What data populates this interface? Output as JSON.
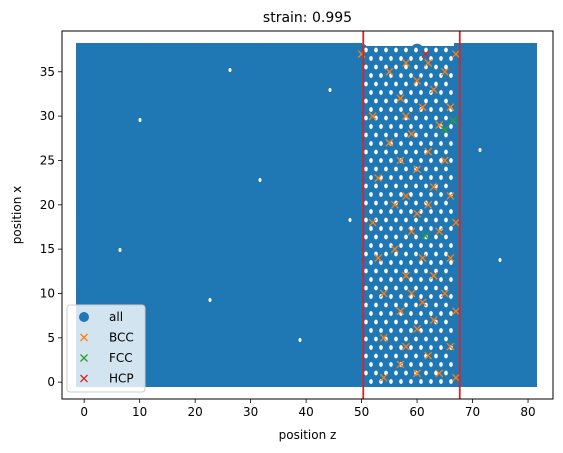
{
  "chart_data": {
    "type": "scatter",
    "title": "strain: 0.995",
    "xlabel": "position z",
    "ylabel": "position x",
    "xlim": [
      -4,
      84.5
    ],
    "ylim": [
      -1.9,
      39.6
    ],
    "xticks": [
      0,
      10,
      20,
      30,
      40,
      50,
      60,
      70,
      80
    ],
    "yticks": [
      0,
      5,
      10,
      15,
      20,
      25,
      30,
      35
    ],
    "grid": false,
    "legend_position": "lower-left",
    "series": [
      {
        "name": "all",
        "marker": "circle",
        "color": "#1f77b4",
        "points": [
          [
            0.5,
            0.5
          ],
          [
            10,
            0.5
          ],
          [
            20,
            0.5
          ],
          [
            30,
            0.5
          ],
          [
            40,
            0.5
          ],
          [
            50,
            0.5
          ],
          [
            60,
            0.5
          ],
          [
            70,
            0.5
          ],
          [
            80,
            0.5
          ],
          [
            0.5,
            37.5
          ],
          [
            10,
            37.5
          ],
          [
            20,
            37.5
          ],
          [
            30,
            37.5
          ],
          [
            40,
            37.5
          ],
          [
            50,
            37.5
          ],
          [
            60,
            37.5
          ],
          [
            70,
            37.5
          ],
          [
            80,
            37.5
          ],
          [
            0,
            10
          ],
          [
            0,
            20
          ],
          [
            0,
            30
          ],
          [
            80,
            10
          ],
          [
            80,
            20
          ],
          [
            80,
            30
          ],
          [
            20,
            15
          ],
          [
            40,
            25
          ],
          [
            60,
            10
          ],
          [
            70,
            30
          ]
        ]
      },
      {
        "name": "BCC",
        "marker": "x",
        "color": "#ff7f0e",
        "points": [
          [
            50,
            37
          ],
          [
            52,
            30
          ],
          [
            53,
            23
          ],
          [
            52,
            18
          ],
          [
            53,
            14
          ],
          [
            54,
            10
          ],
          [
            54,
            5
          ],
          [
            54,
            0.5
          ],
          [
            55,
            35
          ],
          [
            55,
            27
          ],
          [
            56,
            20
          ],
          [
            56,
            15
          ],
          [
            57,
            32
          ],
          [
            57,
            25
          ],
          [
            57,
            8
          ],
          [
            57,
            2
          ],
          [
            58,
            36
          ],
          [
            58,
            30
          ],
          [
            58,
            21
          ],
          [
            58,
            12
          ],
          [
            58,
            4
          ],
          [
            59,
            28
          ],
          [
            59,
            17
          ],
          [
            59,
            10
          ],
          [
            60,
            34
          ],
          [
            60,
            24
          ],
          [
            60,
            19
          ],
          [
            60,
            6
          ],
          [
            60,
            1
          ],
          [
            61,
            31
          ],
          [
            61,
            14
          ],
          [
            61,
            9
          ],
          [
            62,
            36
          ],
          [
            62,
            26
          ],
          [
            62,
            20
          ],
          [
            62,
            3
          ],
          [
            63,
            33
          ],
          [
            63,
            22
          ],
          [
            63,
            12
          ],
          [
            63,
            7
          ],
          [
            64,
            29
          ],
          [
            64,
            17
          ],
          [
            64,
            1
          ],
          [
            65,
            35
          ],
          [
            65,
            25
          ],
          [
            65,
            10
          ],
          [
            66,
            31
          ],
          [
            66,
            21
          ],
          [
            66,
            14
          ],
          [
            66,
            4
          ],
          [
            67,
            37
          ],
          [
            67,
            18
          ],
          [
            67,
            8
          ],
          [
            67,
            0.5
          ]
        ]
      },
      {
        "name": "FCC",
        "marker": "x",
        "color": "#2ca02c",
        "points": [
          [
            65,
            28.5
          ],
          [
            66.5,
            29.5
          ],
          [
            61.5,
            16.5
          ]
        ]
      },
      {
        "name": "HCP",
        "marker": "x",
        "color": "#d62728",
        "points": [
          [
            61.5,
            37
          ]
        ]
      }
    ],
    "vlines": [
      {
        "x": 50.3,
        "color": "#d62728"
      },
      {
        "x": 67.7,
        "color": "#d62728"
      }
    ]
  }
}
